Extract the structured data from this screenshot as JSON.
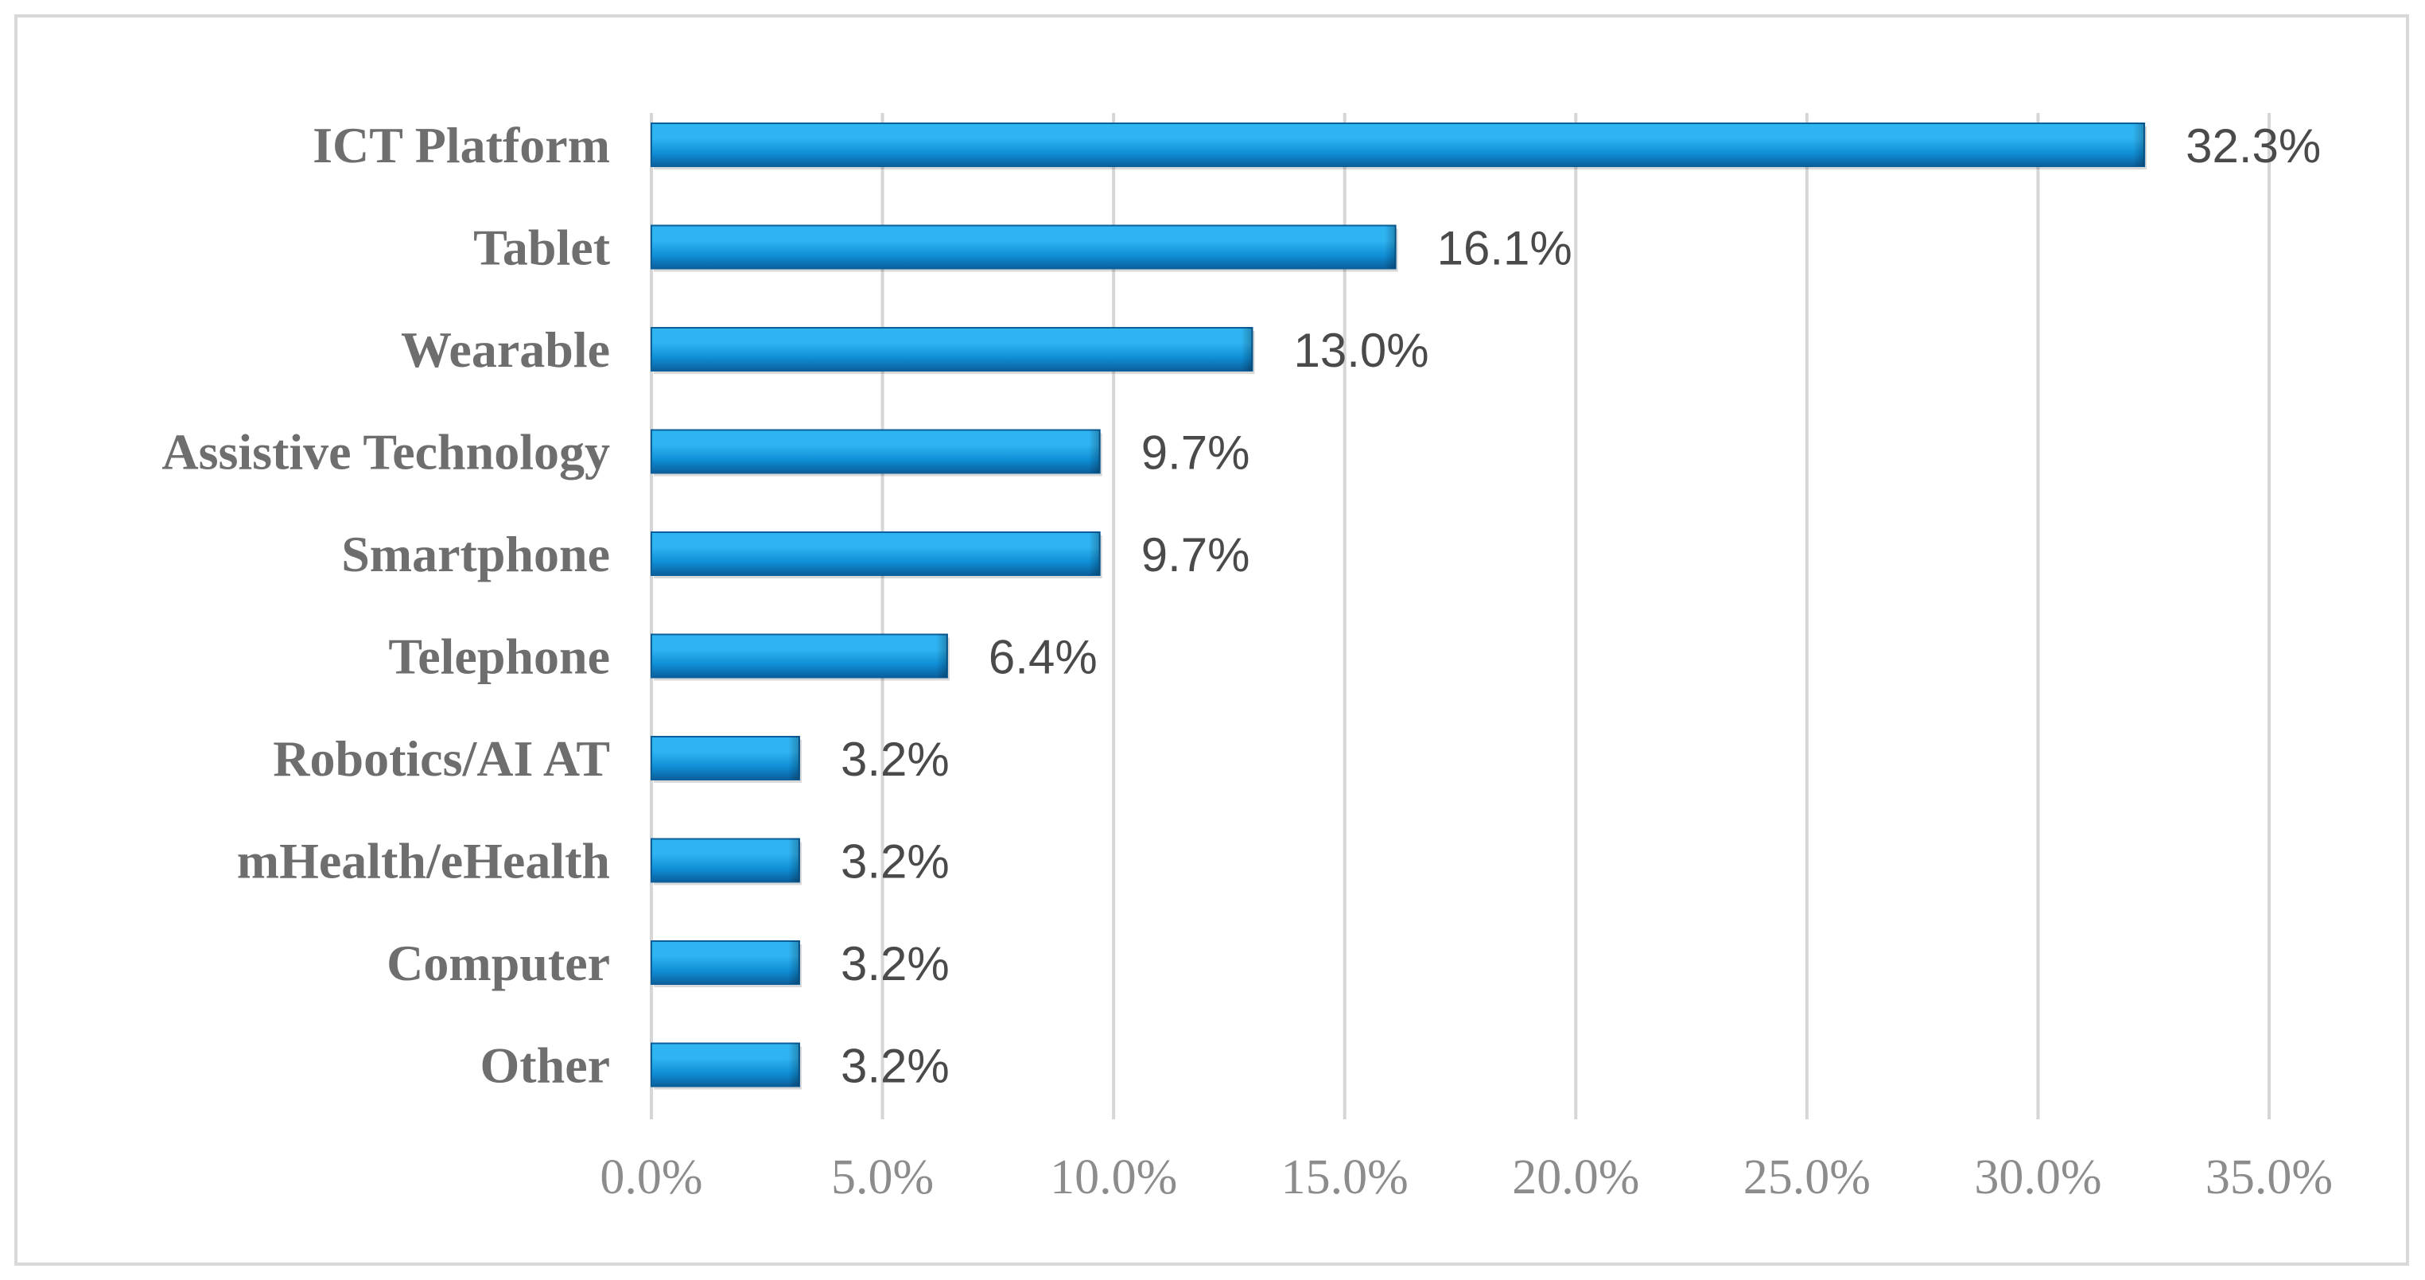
{
  "chart_data": {
    "type": "bar",
    "orientation": "horizontal",
    "categories": [
      "ICT Platform",
      "Tablet",
      "Wearable",
      "Assistive Technology",
      "Smartphone",
      "Telephone",
      "Robotics/AI AT",
      "mHealth/eHealth",
      "Computer",
      "Other"
    ],
    "values": [
      32.3,
      16.1,
      13.0,
      9.7,
      9.7,
      6.4,
      3.2,
      3.2,
      3.2,
      3.2
    ],
    "value_labels": [
      "32.3%",
      "16.1%",
      "13.0%",
      "9.7%",
      "9.7%",
      "6.4%",
      "3.2%",
      "3.2%",
      "3.2%",
      "3.2%"
    ],
    "xlim": [
      0,
      35
    ],
    "xticks": [
      0,
      5,
      10,
      15,
      20,
      25,
      30,
      35
    ],
    "xtick_labels": [
      "0.0%",
      "5.0%",
      "10.0%",
      "15.0%",
      "20.0%",
      "25.0%",
      "30.0%",
      "35.0%"
    ],
    "title": "",
    "xlabel": "",
    "ylabel": "",
    "grid": "vertical",
    "legend": "none",
    "colors": {
      "bar_light": "#2fb4f2",
      "bar_mid": "#0f8ed6",
      "bar_dark": "#0b5f9b",
      "grid": "#d6d6d6",
      "category_text": "#6e6e6e",
      "value_text": "#4a4a4a",
      "tick_text": "#8c8c8c",
      "frame": "#d9d9d9"
    }
  }
}
